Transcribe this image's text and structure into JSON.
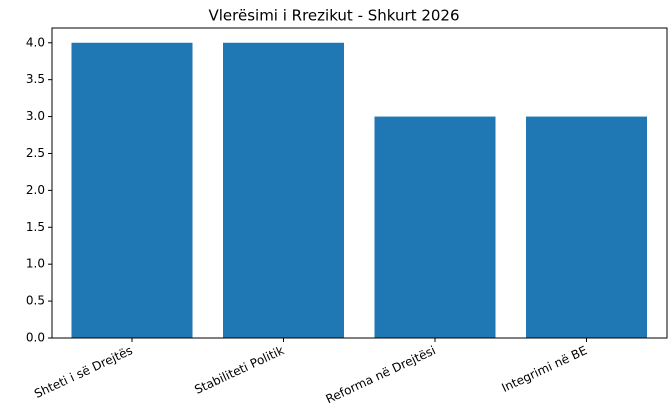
{
  "chart_data": {
    "type": "bar",
    "title": "Vlerësimi i Rrezikut - Shkurt 2026",
    "categories": [
      "Shteti i së Drejtës",
      "Stabiliteti Politik",
      "Reforma në Drejtësi",
      "Integrimi në BE"
    ],
    "values": [
      4,
      4,
      3,
      3
    ],
    "color": "#1f77b4",
    "ylim": [
      0,
      4.2
    ],
    "yticks": [
      {
        "value": 0,
        "label": "0.0"
      },
      {
        "value": 0.5,
        "label": "0.5"
      },
      {
        "value": 1,
        "label": "1.0"
      },
      {
        "value": 1.5,
        "label": "1.5"
      },
      {
        "value": 2,
        "label": "2.0"
      },
      {
        "value": 2.5,
        "label": "2.5"
      },
      {
        "value": 3,
        "label": "3.0"
      },
      {
        "value": 3.5,
        "label": "3.5"
      },
      {
        "value": 4,
        "label": "4.0"
      }
    ],
    "grid": false
  }
}
